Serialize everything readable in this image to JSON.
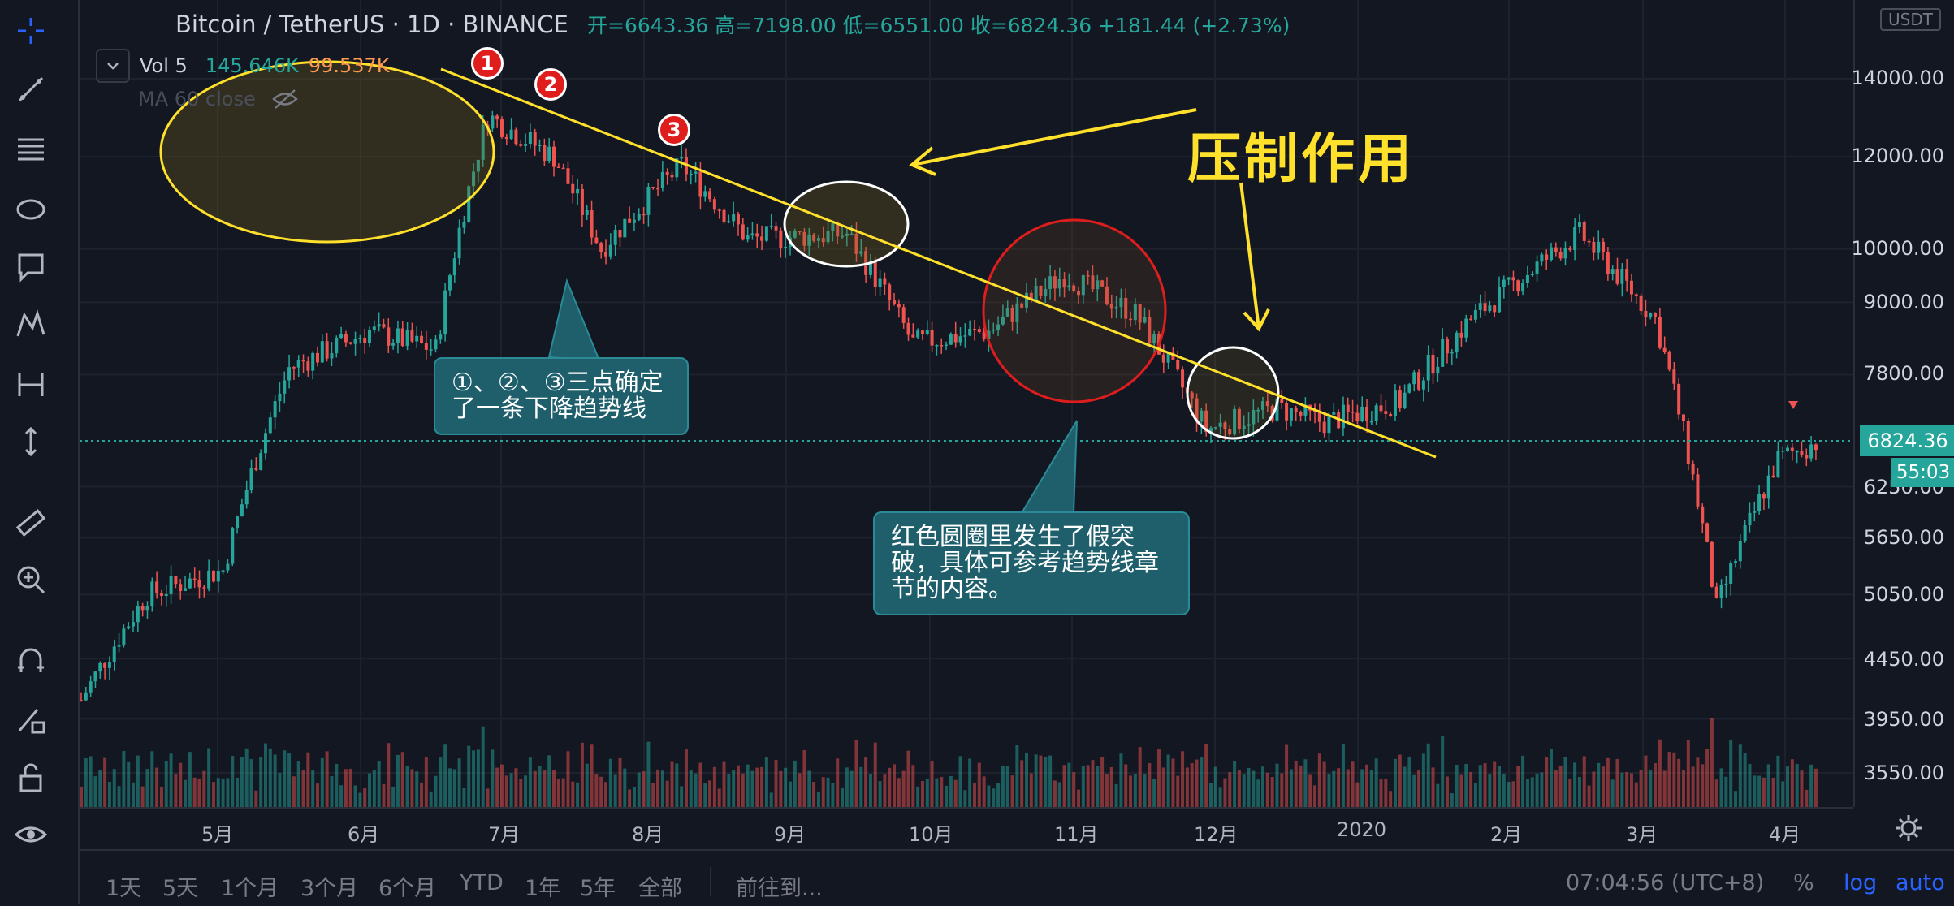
{
  "legend": {
    "symbol": "Bitcoin / TetherUS · 1D · BINANCE",
    "ohlc": "开=6643.36 高=7198.00 低=6551.00 收=6824.36 +181.44 (+2.73%)"
  },
  "volume": {
    "label": "Vol 5",
    "value1": "145.646K",
    "value2": "99.537K"
  },
  "ma": {
    "label": "MA 60 close"
  },
  "price_axis": {
    "currency": "USDT",
    "labels": [
      "14000.00",
      "12000.00",
      "10000.00",
      "9000.00",
      "7800.00",
      "6250.00",
      "5650.00",
      "5050.00",
      "4450.00",
      "3950.00",
      "3550.00"
    ],
    "current_price": "6824.36",
    "countdown": "55:03"
  },
  "time_axis": {
    "months": [
      "5月",
      "6月",
      "7月",
      "8月",
      "9月",
      "10月",
      "11月",
      "12月",
      "2020",
      "2月",
      "3月",
      "4月"
    ]
  },
  "bottom_bar": {
    "ranges": [
      "1天",
      "5天",
      "1个月",
      "3个月",
      "6个月",
      "YTD",
      "1年",
      "5年",
      "全部"
    ],
    "goto": "前往到...",
    "time": "07:04:56 (UTC+8)",
    "percent": "%",
    "log": "log",
    "auto": "auto"
  },
  "annotations": {
    "callout1": "①、②、③三点确定了一条下降趋势线",
    "callout2": "红色圆圈里发生了假突破，具体可参考趋势线章节的内容。",
    "big_label": "压制作用",
    "points": [
      "1",
      "2",
      "3"
    ]
  },
  "colors": {
    "up": "#26a69a",
    "down": "#ef5350",
    "trendline": "#ffe02b",
    "background": "#131722"
  },
  "chart_data": {
    "type": "candlestick",
    "symbol": "BTC/USDT",
    "timeframe": "1D",
    "period": "2019-04 to 2020-04",
    "ylim": [
      3550,
      14000
    ],
    "close_path": [
      {
        "x": "2019-04-01",
        "y": 4100
      },
      {
        "x": "2019-04-15",
        "y": 5050
      },
      {
        "x": "2019-05-01",
        "y": 5300
      },
      {
        "x": "2019-05-15",
        "y": 7900
      },
      {
        "x": "2019-06-01",
        "y": 8500
      },
      {
        "x": "2019-06-15",
        "y": 8200
      },
      {
        "x": "2019-06-26",
        "y": 13000
      },
      {
        "x": "2019-07-10",
        "y": 12000
      },
      {
        "x": "2019-07-20",
        "y": 10000
      },
      {
        "x": "2019-08-06",
        "y": 11800
      },
      {
        "x": "2019-08-20",
        "y": 10200
      },
      {
        "x": "2019-09-10",
        "y": 10300
      },
      {
        "x": "2019-09-24",
        "y": 8300
      },
      {
        "x": "2019-10-10",
        "y": 8500
      },
      {
        "x": "2019-10-26",
        "y": 9500
      },
      {
        "x": "2019-11-10",
        "y": 8800
      },
      {
        "x": "2019-11-25",
        "y": 7000
      },
      {
        "x": "2019-12-10",
        "y": 7300
      },
      {
        "x": "2019-12-20",
        "y": 7100
      },
      {
        "x": "2020-01-05",
        "y": 7400
      },
      {
        "x": "2020-01-20",
        "y": 8700
      },
      {
        "x": "2020-02-12",
        "y": 10300
      },
      {
        "x": "2020-02-28",
        "y": 8700
      },
      {
        "x": "2020-03-12",
        "y": 4900
      },
      {
        "x": "2020-03-25",
        "y": 6600
      },
      {
        "x": "2020-04-02",
        "y": 6824.36
      }
    ]
  }
}
